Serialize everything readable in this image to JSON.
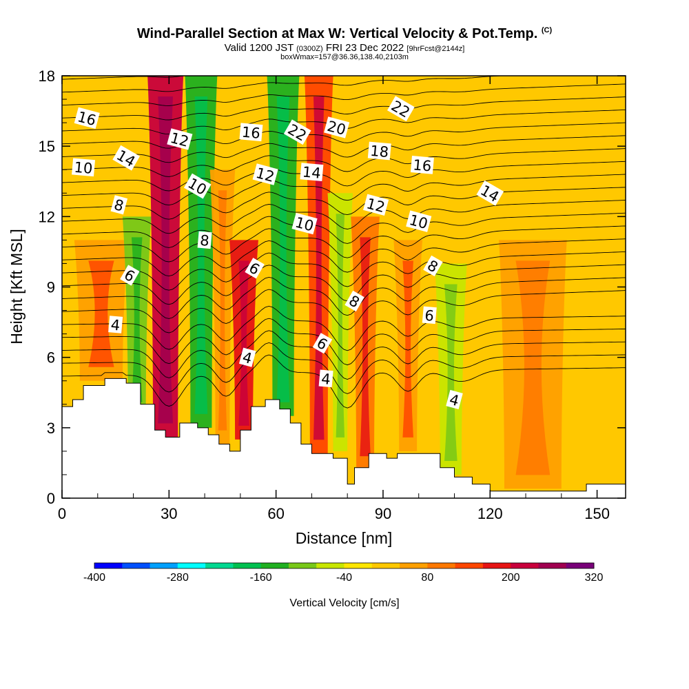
{
  "header": {
    "title": "Wind-Parallel Section at Max W: Vertical Velocity & Pot.Temp.",
    "copyright": "(C)",
    "valid_prefix": "Valid 1200 JST",
    "valid_utc": "(0300Z)",
    "valid_date": "FRI 23 Dec 2022",
    "forecast": "[9hrFcst@2144z]",
    "box_info": "boxWmax=157@36.36,138.40,2103m"
  },
  "chart_data": {
    "type": "heatmap",
    "xlabel": "Distance [nm]",
    "ylabel": "Height [Kft MSL]",
    "xlim": [
      0,
      158
    ],
    "ylim": [
      0,
      18
    ],
    "x_ticks": [
      0,
      30,
      60,
      90,
      120,
      150
    ],
    "y_ticks": [
      0,
      3,
      6,
      9,
      12,
      15,
      18
    ],
    "x_tick_labels": [
      "0",
      "30",
      "60",
      "90",
      "120",
      "150"
    ],
    "y_tick_labels": [
      "0",
      "3",
      "6",
      "9",
      "12",
      "15",
      "18"
    ],
    "colorbar": {
      "label": "Vertical Velocity [cm/s]",
      "range": [
        -400,
        320
      ],
      "step": 40,
      "tick_values": [
        -400,
        -280,
        -160,
        -40,
        80,
        200,
        320
      ],
      "tick_labels": [
        "-400",
        "-280",
        "-160",
        "-40",
        "80",
        "200",
        "320"
      ],
      "colors": [
        "#0000ff",
        "#0050ff",
        "#00a0ff",
        "#00ffff",
        "#00d890",
        "#00c050",
        "#20b020",
        "#78c818",
        "#c8e600",
        "#ffe600",
        "#ffc800",
        "#ffa000",
        "#ff7800",
        "#ff4600",
        "#e61414",
        "#c8003c",
        "#a00050",
        "#780078"
      ]
    },
    "terrain_kft": [
      {
        "x": 0,
        "h": 3.9
      },
      {
        "x": 3,
        "h": 4.2
      },
      {
        "x": 6,
        "h": 4.8
      },
      {
        "x": 12,
        "h": 5.1
      },
      {
        "x": 18,
        "h": 4.9
      },
      {
        "x": 22,
        "h": 4.0
      },
      {
        "x": 26,
        "h": 2.9
      },
      {
        "x": 29,
        "h": 2.6
      },
      {
        "x": 33,
        "h": 3.2
      },
      {
        "x": 38,
        "h": 3.0
      },
      {
        "x": 41,
        "h": 2.7
      },
      {
        "x": 44,
        "h": 2.3
      },
      {
        "x": 47,
        "h": 2.0
      },
      {
        "x": 50,
        "h": 2.9
      },
      {
        "x": 53,
        "h": 3.9
      },
      {
        "x": 57,
        "h": 4.2
      },
      {
        "x": 61,
        "h": 3.8
      },
      {
        "x": 64,
        "h": 3.2
      },
      {
        "x": 67,
        "h": 2.3
      },
      {
        "x": 70,
        "h": 1.9
      },
      {
        "x": 76,
        "h": 1.7
      },
      {
        "x": 80,
        "h": 0.6
      },
      {
        "x": 82,
        "h": 1.3
      },
      {
        "x": 86,
        "h": 1.9
      },
      {
        "x": 91,
        "h": 1.7
      },
      {
        "x": 94,
        "h": 1.9
      },
      {
        "x": 101,
        "h": 1.9
      },
      {
        "x": 106,
        "h": 1.3
      },
      {
        "x": 110,
        "h": 0.9
      },
      {
        "x": 115,
        "h": 0.6
      },
      {
        "x": 120,
        "h": 0.3
      },
      {
        "x": 146,
        "h": 0.3
      },
      {
        "x": 147,
        "h": 0.6
      },
      {
        "x": 158,
        "h": 0.6
      }
    ],
    "vertical_velocity_bands": [
      {
        "x_center": 11,
        "width": 12,
        "y_bottom": 5.0,
        "y_top": 11.0,
        "value": 60
      },
      {
        "x_center": 21,
        "width": 5,
        "y_bottom": 3.5,
        "y_top": 12.0,
        "value": -100
      },
      {
        "x_center": 29,
        "width": 7,
        "y_bottom": 2.6,
        "y_top": 18.0,
        "value": 200
      },
      {
        "x_center": 39,
        "width": 6,
        "y_bottom": 3.0,
        "y_top": 18.0,
        "value": -160
      },
      {
        "x_center": 45,
        "width": 4,
        "y_bottom": 2.3,
        "y_top": 14.0,
        "value": 40
      },
      {
        "x_center": 51,
        "width": 5,
        "y_bottom": 2.5,
        "y_top": 11.0,
        "value": 160
      },
      {
        "x_center": 62,
        "width": 6,
        "y_bottom": 3.5,
        "y_top": 18.0,
        "value": -160
      },
      {
        "x_center": 72,
        "width": 5,
        "y_bottom": 1.9,
        "y_top": 18.0,
        "value": 140
      },
      {
        "x_center": 78,
        "width": 4,
        "y_bottom": 2.0,
        "y_top": 13.0,
        "value": -60
      },
      {
        "x_center": 85,
        "width": 5,
        "y_bottom": 1.2,
        "y_top": 12.0,
        "value": 100
      },
      {
        "x_center": 97,
        "width": 5,
        "y_bottom": 2.0,
        "y_top": 11.0,
        "value": 60
      },
      {
        "x_center": 109,
        "width": 6,
        "y_bottom": 1.0,
        "y_top": 10.0,
        "value": -60
      },
      {
        "x_center": 132,
        "width": 16,
        "y_bottom": 0.4,
        "y_top": 11.0,
        "value": 40
      }
    ],
    "theta_contour_labels": [
      {
        "x": 7,
        "y": 16.2,
        "text": "16"
      },
      {
        "x": 18,
        "y": 14.5,
        "text": "14"
      },
      {
        "x": 6,
        "y": 14.1,
        "text": "10"
      },
      {
        "x": 16,
        "y": 12.5,
        "text": "8"
      },
      {
        "x": 19,
        "y": 9.5,
        "text": "6"
      },
      {
        "x": 15,
        "y": 7.4,
        "text": "4"
      },
      {
        "x": 33,
        "y": 15.3,
        "text": "12"
      },
      {
        "x": 38,
        "y": 13.3,
        "text": "10"
      },
      {
        "x": 40,
        "y": 11.0,
        "text": "8"
      },
      {
        "x": 52,
        "y": 6.0,
        "text": "4"
      },
      {
        "x": 54,
        "y": 9.8,
        "text": "6"
      },
      {
        "x": 53,
        "y": 15.6,
        "text": "16"
      },
      {
        "x": 57,
        "y": 13.8,
        "text": "12"
      },
      {
        "x": 66,
        "y": 15.6,
        "text": "22"
      },
      {
        "x": 70,
        "y": 13.9,
        "text": "14"
      },
      {
        "x": 68,
        "y": 11.7,
        "text": "10"
      },
      {
        "x": 73,
        "y": 6.6,
        "text": "6"
      },
      {
        "x": 74,
        "y": 5.1,
        "text": "4"
      },
      {
        "x": 77,
        "y": 15.8,
        "text": "20"
      },
      {
        "x": 82,
        "y": 8.4,
        "text": "8"
      },
      {
        "x": 89,
        "y": 14.8,
        "text": "18"
      },
      {
        "x": 88,
        "y": 12.5,
        "text": "12"
      },
      {
        "x": 95,
        "y": 16.6,
        "text": "22"
      },
      {
        "x": 101,
        "y": 14.2,
        "text": "16"
      },
      {
        "x": 100,
        "y": 11.8,
        "text": "10"
      },
      {
        "x": 104,
        "y": 9.9,
        "text": "8"
      },
      {
        "x": 103,
        "y": 7.8,
        "text": "6"
      },
      {
        "x": 110,
        "y": 4.2,
        "text": "4"
      },
      {
        "x": 120,
        "y": 13.0,
        "text": "14"
      }
    ]
  }
}
